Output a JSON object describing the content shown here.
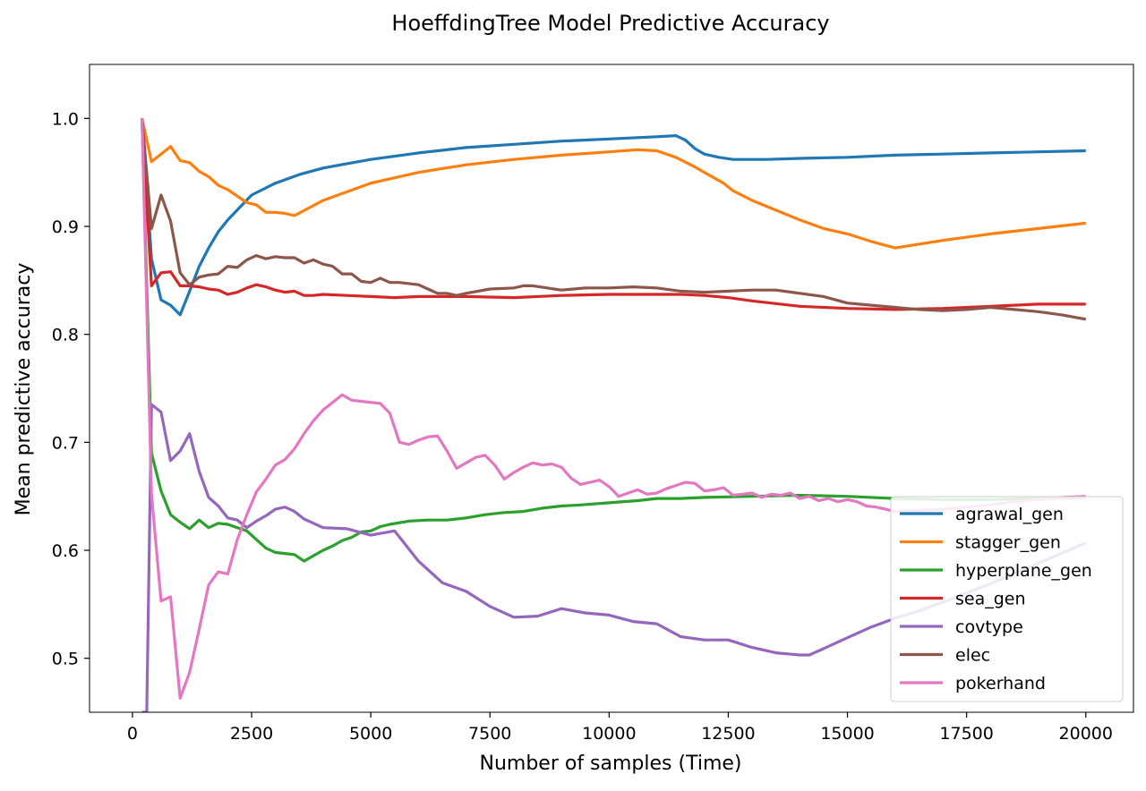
{
  "chart_data": {
    "type": "line",
    "title": "HoeffdingTree Model Predictive Accuracy",
    "xlabel": "Number of samples (Time)",
    "ylabel": "Mean predictive accuracy",
    "xlim": [
      -900,
      21000
    ],
    "ylim": [
      0.45,
      1.05
    ],
    "xticks": [
      0,
      2500,
      5000,
      7500,
      10000,
      12500,
      15000,
      17500,
      20000
    ],
    "xtick_labels": [
      "0",
      "2500",
      "5000",
      "7500",
      "10000",
      "12500",
      "15000",
      "17500",
      "20000"
    ],
    "yticks": [
      0.5,
      0.6,
      0.7,
      0.8,
      0.9,
      1.0
    ],
    "ytick_labels": [
      "0.5",
      "0.6",
      "0.7",
      "0.8",
      "0.9",
      "1.0"
    ],
    "grid": false,
    "legend_position": "lower-right",
    "series": [
      {
        "name": "agrawal_gen",
        "color": "#1f77b4",
        "x": [
          200,
          400,
          600,
          800,
          1000,
          1200,
          1400,
          1600,
          1800,
          2000,
          2500,
          3000,
          3500,
          4000,
          5000,
          6000,
          7000,
          8000,
          9000,
          10000,
          11000,
          11400,
          11600,
          11800,
          12000,
          12300,
          12600,
          13000,
          13300,
          14000,
          15000,
          16000,
          17000,
          18000,
          19000,
          20000
        ],
        "y": [
          1.0,
          0.87,
          0.832,
          0.827,
          0.818,
          0.84,
          0.863,
          0.88,
          0.895,
          0.906,
          0.929,
          0.94,
          0.948,
          0.954,
          0.962,
          0.968,
          0.973,
          0.976,
          0.979,
          0.981,
          0.983,
          0.984,
          0.98,
          0.972,
          0.967,
          0.964,
          0.962,
          0.962,
          0.962,
          0.963,
          0.964,
          0.966,
          0.967,
          0.968,
          0.969,
          0.97
        ]
      },
      {
        "name": "stagger_gen",
        "color": "#ff7f0e",
        "x": [
          200,
          400,
          600,
          800,
          1000,
          1200,
          1400,
          1600,
          1800,
          2000,
          2200,
          2400,
          2600,
          2800,
          3000,
          3200,
          3400,
          4000,
          5000,
          6000,
          7000,
          8000,
          9000,
          10000,
          10600,
          11000,
          11400,
          11800,
          12000,
          12400,
          12600,
          13000,
          13500,
          14000,
          14500,
          15000,
          15500,
          16000,
          17000,
          18000,
          19000,
          20000
        ],
        "y": [
          1.0,
          0.96,
          0.967,
          0.974,
          0.961,
          0.959,
          0.951,
          0.946,
          0.938,
          0.934,
          0.928,
          0.922,
          0.92,
          0.913,
          0.913,
          0.912,
          0.91,
          0.924,
          0.94,
          0.95,
          0.957,
          0.962,
          0.966,
          0.969,
          0.971,
          0.97,
          0.964,
          0.955,
          0.95,
          0.94,
          0.933,
          0.924,
          0.915,
          0.906,
          0.898,
          0.893,
          0.886,
          0.88,
          0.887,
          0.893,
          0.898,
          0.903
        ]
      },
      {
        "name": "hyperplane_gen",
        "color": "#2ca02c",
        "x": [
          200,
          400,
          600,
          800,
          1000,
          1200,
          1400,
          1600,
          1800,
          2000,
          2200,
          2400,
          2600,
          2800,
          3000,
          3200,
          3400,
          3600,
          3800,
          4000,
          4200,
          4400,
          4600,
          4800,
          5000,
          5200,
          5400,
          5800,
          6200,
          6600,
          7000,
          7400,
          7800,
          8200,
          8600,
          9000,
          9400,
          10000,
          10600,
          11000,
          11500,
          12000,
          13000,
          14000,
          15000,
          16000,
          17000,
          18000,
          19000,
          20000
        ],
        "y": [
          1.0,
          0.69,
          0.655,
          0.633,
          0.626,
          0.62,
          0.628,
          0.621,
          0.625,
          0.624,
          0.621,
          0.618,
          0.61,
          0.602,
          0.598,
          0.597,
          0.596,
          0.59,
          0.595,
          0.6,
          0.604,
          0.609,
          0.612,
          0.617,
          0.618,
          0.622,
          0.624,
          0.627,
          0.628,
          0.628,
          0.63,
          0.633,
          0.635,
          0.636,
          0.639,
          0.641,
          0.642,
          0.644,
          0.646,
          0.648,
          0.648,
          0.649,
          0.65,
          0.651,
          0.65,
          0.648,
          0.647,
          0.647,
          0.648,
          0.649
        ]
      },
      {
        "name": "sea_gen",
        "color": "#d62728",
        "x": [
          200,
          400,
          600,
          800,
          1000,
          1200,
          1400,
          1600,
          1800,
          2000,
          2200,
          2400,
          2600,
          2800,
          3000,
          3200,
          3400,
          3600,
          3800,
          4000,
          4500,
          5000,
          5500,
          6000,
          7000,
          8000,
          9000,
          10000,
          11000,
          11500,
          12000,
          12500,
          13000,
          14000,
          15000,
          16000,
          17000,
          18000,
          19000,
          20000
        ],
        "y": [
          1.0,
          0.845,
          0.857,
          0.858,
          0.845,
          0.845,
          0.844,
          0.842,
          0.841,
          0.837,
          0.839,
          0.843,
          0.846,
          0.844,
          0.841,
          0.839,
          0.84,
          0.836,
          0.836,
          0.837,
          0.836,
          0.835,
          0.834,
          0.835,
          0.835,
          0.834,
          0.836,
          0.837,
          0.837,
          0.837,
          0.836,
          0.834,
          0.831,
          0.826,
          0.824,
          0.823,
          0.824,
          0.826,
          0.828,
          0.828
        ]
      },
      {
        "name": "covtype",
        "color": "#9467bd",
        "x": [
          200,
          300,
          400,
          600,
          800,
          1000,
          1200,
          1400,
          1600,
          1800,
          2000,
          2200,
          2400,
          2600,
          2800,
          3000,
          3200,
          3400,
          3600,
          3800,
          4000,
          4500,
          5000,
          5500,
          6000,
          6500,
          7000,
          7500,
          8000,
          8500,
          9000,
          9500,
          10000,
          10500,
          11000,
          11500,
          12000,
          12500,
          13000,
          13500,
          14000,
          14200,
          14600,
          15000,
          15500,
          16000,
          16500,
          17000,
          18000,
          19000,
          20000
        ],
        "y": [
          0.45,
          0.45,
          0.735,
          0.728,
          0.683,
          0.692,
          0.708,
          0.673,
          0.649,
          0.641,
          0.63,
          0.628,
          0.621,
          0.627,
          0.632,
          0.638,
          0.64,
          0.636,
          0.629,
          0.625,
          0.621,
          0.62,
          0.614,
          0.618,
          0.59,
          0.57,
          0.562,
          0.548,
          0.538,
          0.539,
          0.546,
          0.542,
          0.54,
          0.534,
          0.532,
          0.52,
          0.517,
          0.517,
          0.51,
          0.505,
          0.503,
          0.503,
          0.511,
          0.519,
          0.529,
          0.537,
          0.544,
          0.552,
          0.569,
          0.588,
          0.607
        ]
      },
      {
        "name": "elec",
        "color": "#8c564b",
        "x": [
          200,
          400,
          600,
          800,
          1000,
          1200,
          1400,
          1600,
          1800,
          2000,
          2200,
          2400,
          2600,
          2800,
          3000,
          3200,
          3400,
          3600,
          3800,
          4000,
          4200,
          4400,
          4600,
          4800,
          5000,
          5200,
          5400,
          5600,
          6000,
          6200,
          6400,
          6600,
          6800,
          7000,
          7500,
          8000,
          8200,
          8400,
          9000,
          9500,
          10000,
          10500,
          11000,
          11500,
          12000,
          12500,
          13000,
          13500,
          14000,
          14500,
          15000,
          15500,
          16000,
          16500,
          17000,
          17500,
          18000,
          18500,
          19000,
          19500,
          20000
        ],
        "y": [
          1.0,
          0.898,
          0.929,
          0.905,
          0.857,
          0.846,
          0.853,
          0.855,
          0.856,
          0.863,
          0.862,
          0.869,
          0.873,
          0.87,
          0.872,
          0.871,
          0.871,
          0.866,
          0.869,
          0.865,
          0.863,
          0.856,
          0.856,
          0.849,
          0.848,
          0.852,
          0.848,
          0.848,
          0.846,
          0.842,
          0.838,
          0.838,
          0.836,
          0.838,
          0.842,
          0.843,
          0.845,
          0.845,
          0.841,
          0.843,
          0.843,
          0.844,
          0.843,
          0.84,
          0.839,
          0.84,
          0.841,
          0.841,
          0.838,
          0.835,
          0.829,
          0.827,
          0.825,
          0.823,
          0.822,
          0.823,
          0.825,
          0.823,
          0.821,
          0.818,
          0.814
        ]
      },
      {
        "name": "pokerhand",
        "color": "#e377c2",
        "x": [
          200,
          400,
          600,
          800,
          1000,
          1200,
          1400,
          1600,
          1800,
          2000,
          2200,
          2400,
          2600,
          2800,
          3000,
          3200,
          3400,
          3600,
          3800,
          4000,
          4200,
          4400,
          4600,
          4800,
          5000,
          5200,
          5400,
          5600,
          5800,
          6000,
          6200,
          6400,
          6600,
          6800,
          7000,
          7200,
          7400,
          7600,
          7800,
          8000,
          8200,
          8400,
          8600,
          8800,
          9000,
          9200,
          9400,
          9600,
          9800,
          10000,
          10200,
          10400,
          10600,
          10800,
          11000,
          11200,
          11400,
          11600,
          11800,
          12000,
          12200,
          12400,
          12600,
          12800,
          13000,
          13200,
          13400,
          13600,
          13800,
          14000,
          14200,
          14400,
          14600,
          14800,
          15000,
          15200,
          15400,
          15600,
          15800,
          16000,
          16500,
          17000,
          17500,
          18000,
          18500,
          19000,
          19500,
          20000
        ],
        "y": [
          1.0,
          0.652,
          0.553,
          0.557,
          0.463,
          0.487,
          0.527,
          0.568,
          0.58,
          0.578,
          0.61,
          0.633,
          0.654,
          0.666,
          0.679,
          0.684,
          0.694,
          0.708,
          0.72,
          0.73,
          0.737,
          0.744,
          0.739,
          0.738,
          0.737,
          0.736,
          0.727,
          0.7,
          0.698,
          0.702,
          0.705,
          0.706,
          0.692,
          0.676,
          0.681,
          0.686,
          0.688,
          0.679,
          0.666,
          0.672,
          0.677,
          0.681,
          0.679,
          0.68,
          0.677,
          0.667,
          0.661,
          0.663,
          0.665,
          0.659,
          0.65,
          0.653,
          0.656,
          0.652,
          0.653,
          0.657,
          0.66,
          0.663,
          0.662,
          0.655,
          0.656,
          0.658,
          0.651,
          0.652,
          0.653,
          0.649,
          0.652,
          0.651,
          0.653,
          0.648,
          0.65,
          0.646,
          0.648,
          0.645,
          0.647,
          0.645,
          0.641,
          0.64,
          0.638,
          0.636,
          0.637,
          0.638,
          0.64,
          0.642,
          0.645,
          0.647,
          0.649,
          0.65
        ]
      }
    ]
  }
}
